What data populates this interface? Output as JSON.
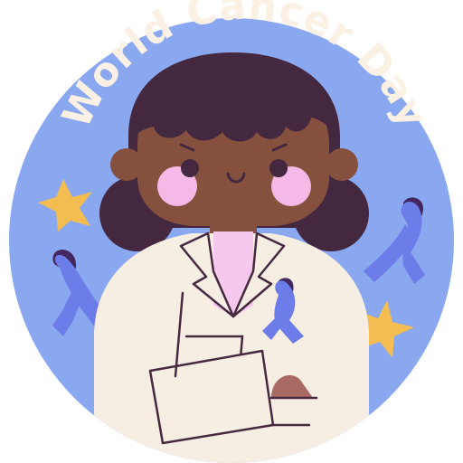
{
  "badge": {
    "title": "World Cancer Day"
  },
  "colors": {
    "background": "#ffffff",
    "circle": "#8aa8ef",
    "title": "#fbf0e4",
    "hair": "#44283f",
    "skin": "#86503f",
    "cheek": "#f4b9e6",
    "coat": "#f6ede3",
    "coat_outline": "#46293f",
    "shirt": "#f6c8ee",
    "ribbon": "#6c7ce8",
    "ribbon_dark": "#43285f",
    "star": "#f4bd52",
    "hand": "#a96a63"
  },
  "icons": {
    "ribbon": "awareness-ribbon-icon",
    "star": "star-icon"
  }
}
